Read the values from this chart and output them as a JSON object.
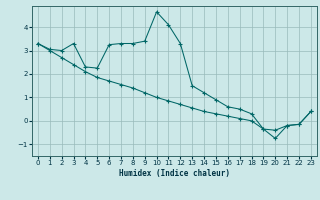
{
  "xlabel": "Humidex (Indice chaleur)",
  "bg_color": "#cce8e8",
  "grid_color": "#99bbbb",
  "line_color": "#006666",
  "marker_color": "#006666",
  "xlim": [
    -0.5,
    23.5
  ],
  "ylim": [
    -1.5,
    4.9
  ],
  "xticks": [
    0,
    1,
    2,
    3,
    4,
    5,
    6,
    7,
    8,
    9,
    10,
    11,
    12,
    13,
    14,
    15,
    16,
    17,
    18,
    19,
    20,
    21,
    22,
    23
  ],
  "yticks": [
    -1,
    0,
    1,
    2,
    3,
    4
  ],
  "series1_x": [
    0,
    1,
    2,
    3,
    4,
    5,
    6,
    7,
    8,
    9,
    10,
    11,
    12,
    13,
    14,
    15,
    16,
    17,
    18,
    19,
    20,
    21,
    22,
    23
  ],
  "series1_y": [
    3.3,
    3.05,
    3.0,
    3.3,
    2.3,
    2.25,
    3.25,
    3.3,
    3.3,
    3.4,
    4.65,
    4.1,
    3.3,
    1.5,
    1.2,
    0.9,
    0.6,
    0.5,
    0.3,
    -0.35,
    -0.4,
    -0.2,
    -0.15,
    0.4
  ],
  "series2_x": [
    0,
    1,
    2,
    3,
    4,
    5,
    6,
    7,
    8,
    9,
    10,
    11,
    12,
    13,
    14,
    15,
    16,
    17,
    18,
    19,
    20,
    21,
    22,
    23
  ],
  "series2_y": [
    3.3,
    3.0,
    2.7,
    2.4,
    2.1,
    1.85,
    1.7,
    1.55,
    1.4,
    1.2,
    1.0,
    0.85,
    0.7,
    0.55,
    0.4,
    0.3,
    0.2,
    0.1,
    0.0,
    -0.35,
    -0.75,
    -0.2,
    -0.15,
    0.4
  ]
}
